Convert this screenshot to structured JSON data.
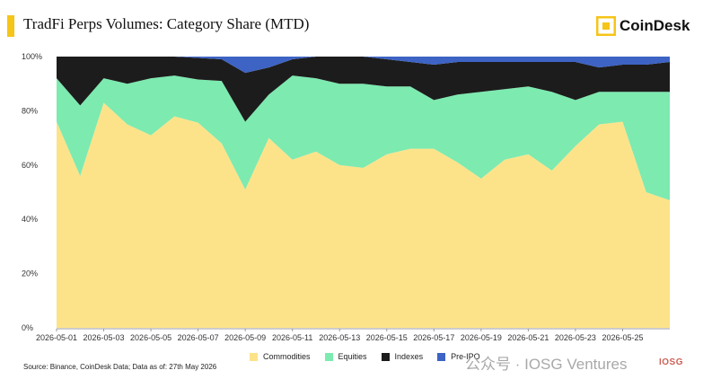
{
  "title": "TradFi Perps Volumes: Category Share (MTD)",
  "brand": {
    "name": "CoinDesk",
    "icon": "coindesk-logo-icon",
    "color": "#f5c518"
  },
  "source": "Source: Binance, CoinDesk Data; Data as of: 27th May 2026",
  "watermark": {
    "text": "公众号 · IOSG Ventures",
    "logo_text": "IOSG"
  },
  "chart_data": {
    "type": "area",
    "stacked": true,
    "percent": true,
    "x": [
      "2026-05-01",
      "2026-05-02",
      "2026-05-03",
      "2026-05-04",
      "2026-05-05",
      "2026-05-06",
      "2026-05-07",
      "2026-05-08",
      "2026-05-09",
      "2026-05-10",
      "2026-05-11",
      "2026-05-12",
      "2026-05-13",
      "2026-05-14",
      "2026-05-15",
      "2026-05-16",
      "2026-05-17",
      "2026-05-18",
      "2026-05-19",
      "2026-05-20",
      "2026-05-21",
      "2026-05-22",
      "2026-05-23",
      "2026-05-24",
      "2026-05-25",
      "2026-05-26",
      "2026-05-27"
    ],
    "xtick_labels": [
      "2026-05-01",
      "2026-05-03",
      "2026-05-05",
      "2026-05-07",
      "2026-05-09",
      "2026-05-11",
      "2026-05-13",
      "2026-05-15",
      "2026-05-17",
      "2026-05-19",
      "2026-05-21",
      "2026-05-23",
      "2026-05-25"
    ],
    "ytick_labels": [
      "0%",
      "20%",
      "40%",
      "60%",
      "80%",
      "100%"
    ],
    "ylim": [
      0,
      100
    ],
    "grid": false,
    "legend_position": "bottom",
    "series": [
      {
        "name": "Commodities",
        "color": "#fce38a",
        "values": [
          76,
          56,
          83,
          75,
          71,
          78,
          76,
          68,
          51,
          70,
          62,
          65,
          60,
          59,
          64,
          66,
          66,
          61,
          55,
          62,
          64,
          58,
          67,
          75,
          76,
          50,
          47
        ]
      },
      {
        "name": "Equities",
        "color": "#7deab0",
        "values": [
          16,
          26,
          9,
          15,
          21,
          15,
          16,
          23,
          25,
          16,
          31,
          27,
          30,
          31,
          25,
          23,
          18,
          25,
          32,
          26,
          25,
          29,
          17,
          12,
          11,
          37,
          40
        ]
      },
      {
        "name": "Indexes",
        "color": "#1c1c1c",
        "values": [
          8,
          18,
          8,
          10,
          8,
          7,
          8,
          8,
          18,
          10,
          6,
          8,
          10,
          10,
          10,
          9,
          13,
          12,
          11,
          10,
          9,
          11,
          14,
          9,
          10,
          10,
          11
        ]
      },
      {
        "name": "Pre-IPO",
        "color": "#3d63c4",
        "values": [
          0,
          0,
          0,
          0,
          0,
          0,
          0.5,
          1,
          6,
          4,
          1,
          0,
          0,
          0,
          1,
          2,
          3,
          2,
          2,
          2,
          2,
          2,
          2,
          4,
          3,
          3,
          2
        ]
      }
    ]
  }
}
